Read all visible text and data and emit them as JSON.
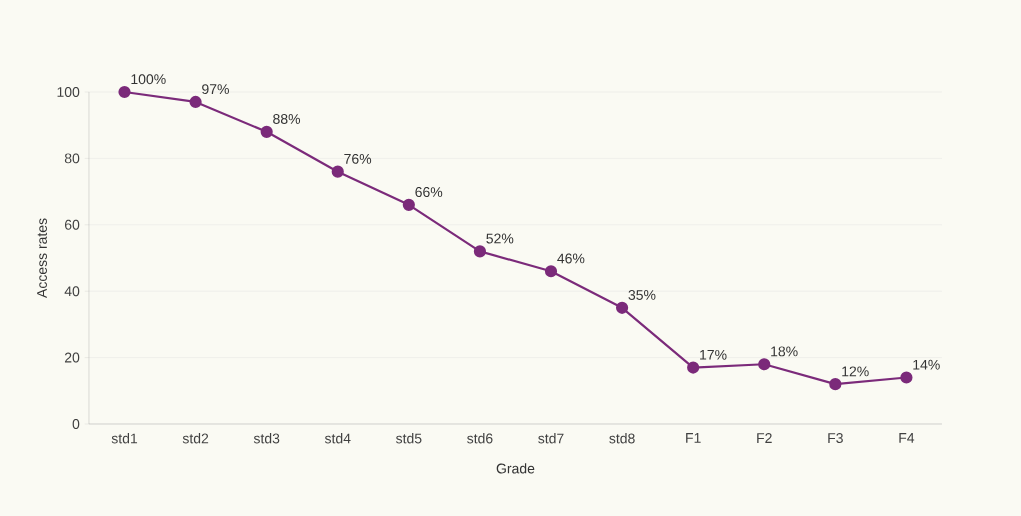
{
  "chart_data": {
    "type": "line",
    "xlabel": "Grade",
    "ylabel": "Access rates",
    "categories": [
      "std1",
      "std2",
      "std3",
      "std4",
      "std5",
      "std6",
      "std7",
      "std8",
      "F1",
      "F2",
      "F3",
      "F4"
    ],
    "series": [
      {
        "color": "#7b2a7a",
        "values": [
          100,
          97,
          88,
          76,
          66,
          52,
          46,
          35,
          17,
          18,
          12,
          14
        ],
        "value_labels": [
          "100%",
          "97%",
          "88%",
          "76%",
          "66%",
          "52%",
          "46%",
          "35%",
          "17%",
          "18%",
          "12%",
          "14%"
        ]
      }
    ],
    "ylim": [
      0,
      100
    ],
    "yticks": [
      0,
      20,
      40,
      60,
      80,
      100
    ],
    "grid": "y",
    "marker": "circle",
    "line_style": "solid"
  }
}
